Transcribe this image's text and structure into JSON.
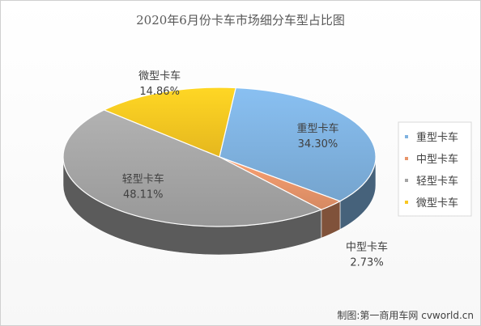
{
  "chart_data": {
    "type": "pie",
    "title": "2020年6月份卡车市场细分车型占比图",
    "categories": [
      "重型卡车",
      "中型卡车",
      "轻型卡车",
      "微型卡车"
    ],
    "values": [
      34.3,
      2.73,
      48.11,
      14.86
    ],
    "value_labels": [
      "34.30%",
      "2.73%",
      "48.11%",
      "14.86%"
    ],
    "colors": [
      "#7fb2e0",
      "#e8956a",
      "#a5a5a5",
      "#f9c721"
    ],
    "legend_position": "right",
    "style": "3d"
  },
  "credit": "制图:第一商用车网 cvworld.cn"
}
